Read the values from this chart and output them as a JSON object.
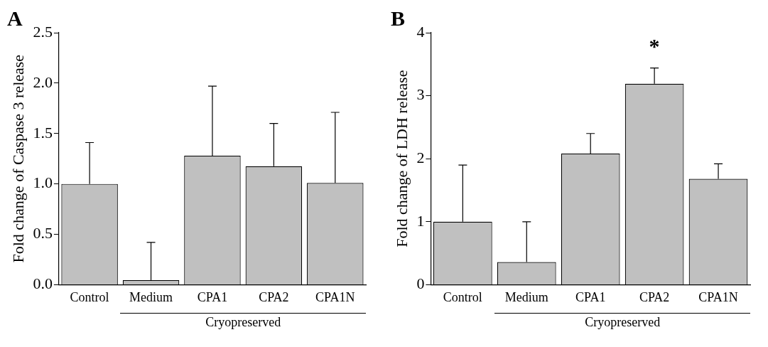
{
  "chart_data": [
    {
      "type": "bar",
      "title": "A",
      "ylabel": "Fold change of Caspase 3 release",
      "categories": [
        "Control",
        "Medium",
        "CPA1",
        "CPA2",
        "CPA1N"
      ],
      "values": [
        1.0,
        0.045,
        1.28,
        1.175,
        1.01
      ],
      "errors": [
        [
          1.0,
          1.41
        ],
        [
          0.045,
          0.42
        ],
        [
          1.28,
          1.97
        ],
        [
          1.175,
          1.6
        ],
        [
          1.01,
          1.71
        ]
      ],
      "color": "#c0c0c0",
      "ylim": [
        0,
        2.5
      ],
      "yticks": [
        {
          "value": 0,
          "label": "0.0"
        },
        0.5,
        {
          "value": 1,
          "label": "1.0"
        },
        1.5,
        {
          "value": 2,
          "label": "2.0"
        },
        2.5
      ],
      "grid": false,
      "legend": false,
      "annotations": [
        "Cryopreserved"
      ]
    },
    {
      "type": "bar",
      "title": "B",
      "ylabel": "Fold change of LDH release",
      "categories": [
        "Control",
        "Medium",
        "CPA1",
        "CPA2",
        "CPA1N"
      ],
      "values": [
        1.0,
        0.36,
        2.08,
        3.19,
        1.68
      ],
      "errors": [
        [
          1.0,
          1.9
        ],
        [
          0.36,
          1.0
        ],
        [
          2.08,
          2.4
        ],
        [
          3.19,
          3.44
        ],
        [
          1.68,
          1.92
        ]
      ],
      "color": "#c0c0c0",
      "ylim": [
        0,
        4
      ],
      "yticks": [
        0,
        1,
        2,
        3,
        4
      ],
      "grid": false,
      "legend": false,
      "annotations": [
        "*",
        "Cryopreserved"
      ]
    }
  ]
}
